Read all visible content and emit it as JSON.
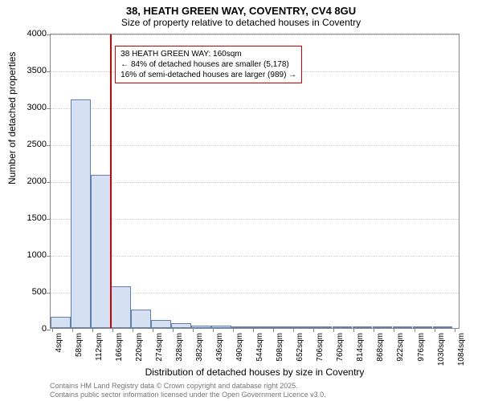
{
  "title": "38, HEATH GREEN WAY, COVENTRY, CV4 8GU",
  "subtitle": "Size of property relative to detached houses in Coventry",
  "ylabel": "Number of detached properties",
  "xlabel": "Distribution of detached houses by size in Coventry",
  "chart": {
    "type": "histogram",
    "ylim": [
      0,
      4000
    ],
    "yticks": [
      0,
      500,
      1000,
      1500,
      2000,
      2500,
      3000,
      3500,
      4000
    ],
    "xlim": [
      0,
      1100
    ],
    "xticks": [
      4,
      58,
      112,
      166,
      220,
      274,
      328,
      382,
      436,
      490,
      544,
      598,
      652,
      706,
      760,
      814,
      868,
      922,
      976,
      1030,
      1084
    ],
    "xtick_suffix": "sqm",
    "bar_fill": "#d5e0f2",
    "bar_stroke": "#6080b0",
    "reference_line": {
      "x": 160,
      "color": "#d00000"
    },
    "bars": [
      {
        "x0": 0,
        "x1": 54,
        "y": 150
      },
      {
        "x0": 54,
        "x1": 108,
        "y": 3100
      },
      {
        "x0": 108,
        "x1": 162,
        "y": 2080
      },
      {
        "x0": 162,
        "x1": 216,
        "y": 560
      },
      {
        "x0": 216,
        "x1": 270,
        "y": 250
      },
      {
        "x0": 270,
        "x1": 324,
        "y": 110
      },
      {
        "x0": 324,
        "x1": 378,
        "y": 60
      },
      {
        "x0": 378,
        "x1": 432,
        "y": 35
      },
      {
        "x0": 432,
        "x1": 486,
        "y": 30
      },
      {
        "x0": 486,
        "x1": 540,
        "y": 25
      },
      {
        "x0": 540,
        "x1": 594,
        "y": 10
      },
      {
        "x0": 594,
        "x1": 648,
        "y": 8
      },
      {
        "x0": 648,
        "x1": 702,
        "y": 6
      },
      {
        "x0": 702,
        "x1": 756,
        "y": 5
      },
      {
        "x0": 756,
        "x1": 810,
        "y": 4
      },
      {
        "x0": 810,
        "x1": 864,
        "y": 3
      },
      {
        "x0": 864,
        "x1": 918,
        "y": 3
      },
      {
        "x0": 918,
        "x1": 972,
        "y": 2
      },
      {
        "x0": 972,
        "x1": 1026,
        "y": 2
      },
      {
        "x0": 1026,
        "x1": 1080,
        "y": 2
      }
    ]
  },
  "annotation": {
    "line1": "38 HEATH GREEN WAY: 160sqm",
    "line2": "← 84% of detached houses are smaller (5,178)",
    "line3": "16% of semi-detached houses are larger (989) →"
  },
  "footer": {
    "line1": "Contains HM Land Registry data © Crown copyright and database right 2025.",
    "line2": "Contains public sector information licensed under the Open Government Licence v3.0."
  }
}
